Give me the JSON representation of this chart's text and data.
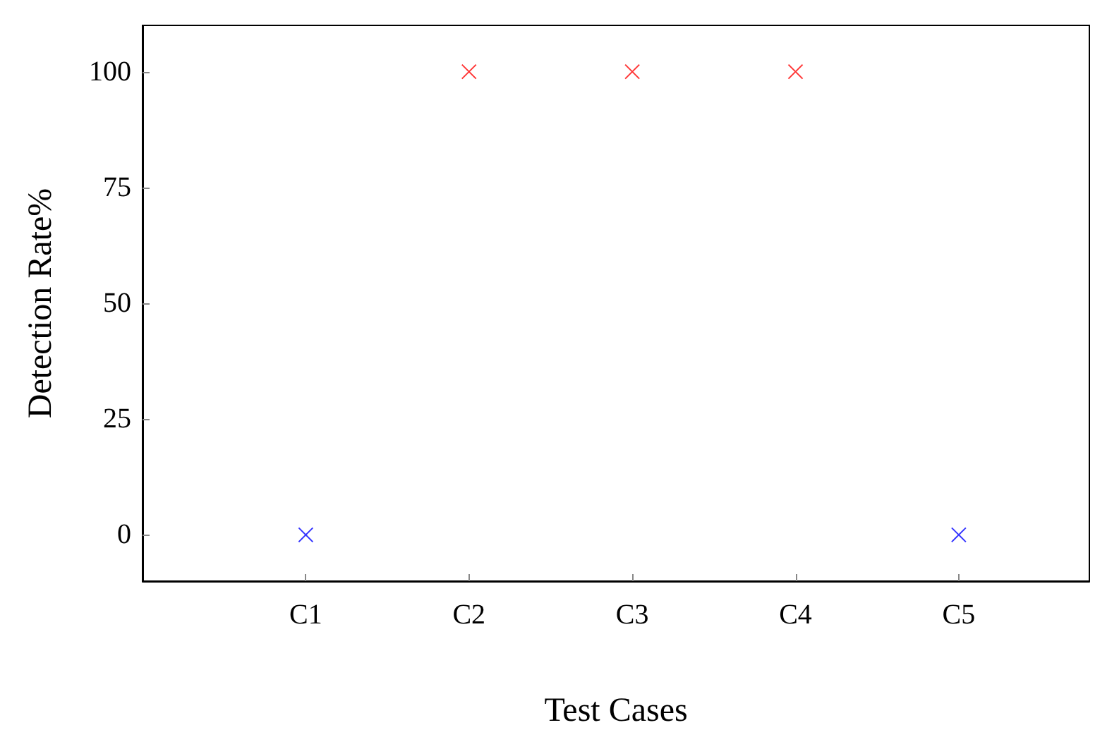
{
  "chart_data": {
    "type": "scatter",
    "xlabel": "Test Cases",
    "ylabel": "Detection Rate%",
    "categories": [
      "C1",
      "C2",
      "C3",
      "C4",
      "C5"
    ],
    "values": [
      0,
      100,
      100,
      100,
      0
    ],
    "colors": [
      "#0000ff",
      "#ff0000",
      "#ff0000",
      "#ff0000",
      "#0000ff"
    ],
    "ylim": [
      -10,
      110
    ],
    "yticks": [
      0,
      25,
      50,
      75,
      100
    ],
    "marker": "cross"
  }
}
